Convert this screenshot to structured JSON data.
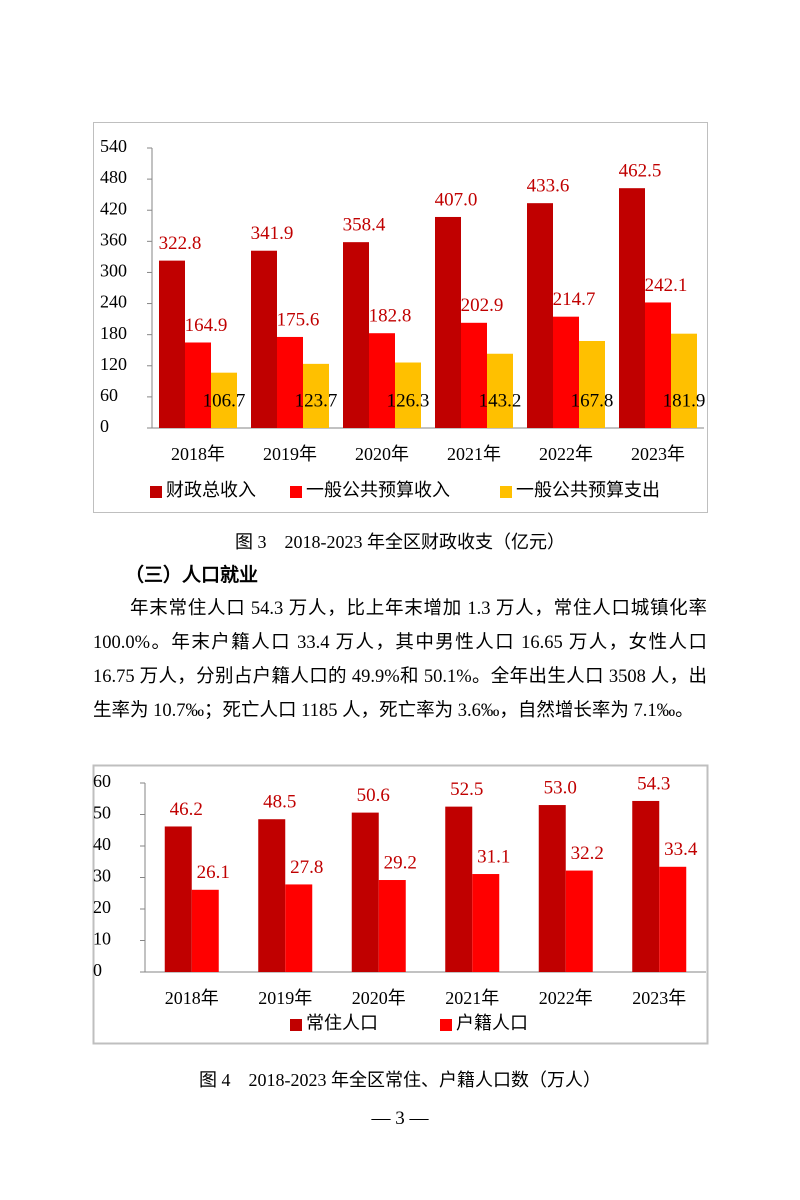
{
  "chart_data": [
    {
      "type": "bar",
      "title": "图 3　2018-2023 年全区财政收支（亿元）",
      "categories": [
        "2018年",
        "2019年",
        "2020年",
        "2021年",
        "2022年",
        "2023年"
      ],
      "series": [
        {
          "name": "财政总收入",
          "color": "#c00000",
          "values": [
            322.8,
            341.9,
            358.4,
            407,
            433.6,
            462.5
          ],
          "value_labels": [
            "322.8",
            "341.9",
            "358.4",
            "407.0",
            "433.6",
            "462.5"
          ]
        },
        {
          "name": "一般公共预算收入",
          "color": "#ff0000",
          "values": [
            164.9,
            175.6,
            182.8,
            202.9,
            214.7,
            242.1
          ]
        },
        {
          "name": "一般公共预算支出",
          "color": "#ffc000",
          "values": [
            106.7,
            123.7,
            126.3,
            143.2,
            167.8,
            181.9
          ]
        }
      ],
      "ylim": [
        0,
        540
      ],
      "yticks": [
        0,
        60,
        120,
        180,
        240,
        300,
        360,
        420,
        480,
        540
      ],
      "grid": false,
      "legend": "bottom"
    },
    {
      "type": "bar",
      "title": "图 4　2018-2023 年全区常住、户籍人口数（万人）",
      "categories": [
        "2018年",
        "2019年",
        "2020年",
        "2021年",
        "2022年",
        "2023年"
      ],
      "series": [
        {
          "name": "常住人口",
          "color": "#c00000",
          "values": [
            46.2,
            48.5,
            50.6,
            52.5,
            53,
            54.3
          ],
          "value_labels": [
            "46.2",
            "48.5",
            "50.6",
            "52.5",
            "53.0",
            "54.3"
          ]
        },
        {
          "name": "户籍人口",
          "color": "#ff0000",
          "values": [
            26.1,
            27.8,
            29.2,
            31.1,
            32.2,
            33.4
          ]
        }
      ],
      "ylim": [
        0,
        60
      ],
      "yticks": [
        0,
        10,
        20,
        30,
        40,
        50,
        60
      ],
      "grid": false,
      "legend": "bottom"
    }
  ],
  "section_heading": "（三）人口就业",
  "paragraph": "年末常住人口 54.3 万人，比上年末增加 1.3 万人，常住人口城镇化率 100.0%。年末户籍人口 33.4 万人，其中男性人口 16.65 万人，女性人口 16.75 万人，分别占户籍人口的 49.9%和 50.1%。全年出生人口 3508 人，出生率为 10.7‰；死亡人口 1185 人，死亡率为 3.6‰，自然增长率为 7.1‰。",
  "page_number": "— 3 —"
}
